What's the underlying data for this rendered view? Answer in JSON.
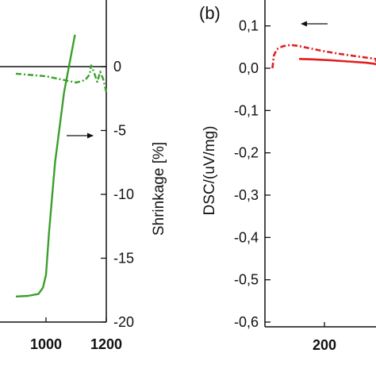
{
  "chart_data": [
    {
      "panel": "a",
      "type": "line",
      "x_ticks": [
        "1000",
        "1200"
      ],
      "y_right_ticks": [
        "0",
        "-5",
        "-10",
        "-15",
        "-20"
      ],
      "y_right_label": "Shrinkage [%]",
      "x_range": [
        900,
        1200
      ],
      "y_right_range": [
        -20,
        2.5
      ],
      "series": [
        {
          "style": "solid",
          "color": "#3aa02a",
          "x": [
            900,
            940,
            975,
            990,
            1000,
            1010,
            1030,
            1060,
            1080,
            1096
          ],
          "y": [
            -18.0,
            -17.95,
            -17.8,
            -17.3,
            -16.3,
            -13.0,
            -7.5,
            -2.0,
            0.5,
            2.5
          ]
        },
        {
          "style": "dash-dot",
          "color": "#3aa02a",
          "x": [
            900,
            950,
            1000,
            1050,
            1100,
            1130,
            1145,
            1150,
            1160,
            1170,
            1180,
            1190,
            1200
          ],
          "y": [
            -0.55,
            -0.65,
            -0.75,
            -1.0,
            -1.25,
            -1.05,
            -0.6,
            0.1,
            -0.5,
            -1.2,
            -0.4,
            -1.0,
            -2.0
          ]
        }
      ],
      "annotation_arrow": "right"
    },
    {
      "panel": "b",
      "panel_label": "(b)",
      "type": "line",
      "y_ticks": [
        "0,1",
        "0,0",
        "-0,1",
        "-0,2",
        "-0,3",
        "-0,4",
        "-0,5",
        "-0,6"
      ],
      "x_ticks": [
        "200"
      ],
      "y_label": "DSC/(uV/mg)",
      "x_range": [
        0,
        470
      ],
      "y_range": [
        -0.6,
        0.1
      ],
      "series": [
        {
          "style": "dash-dot",
          "color": "#e02020",
          "x": [
            25,
            30,
            40,
            60,
            85,
            110,
            150,
            200,
            260,
            320,
            380,
            440,
            470
          ],
          "y": [
            0.0,
            0.03,
            0.045,
            0.052,
            0.055,
            0.053,
            0.047,
            0.04,
            0.033,
            0.027,
            0.022,
            0.018,
            0.015
          ]
        },
        {
          "style": "solid",
          "color": "#e02020",
          "x": [
            115,
            160,
            220,
            280,
            340,
            400,
            470
          ],
          "y": [
            0.022,
            0.021,
            0.019,
            0.016,
            0.013,
            0.01,
            0.007
          ]
        }
      ],
      "annotation_arrow": "left"
    }
  ]
}
